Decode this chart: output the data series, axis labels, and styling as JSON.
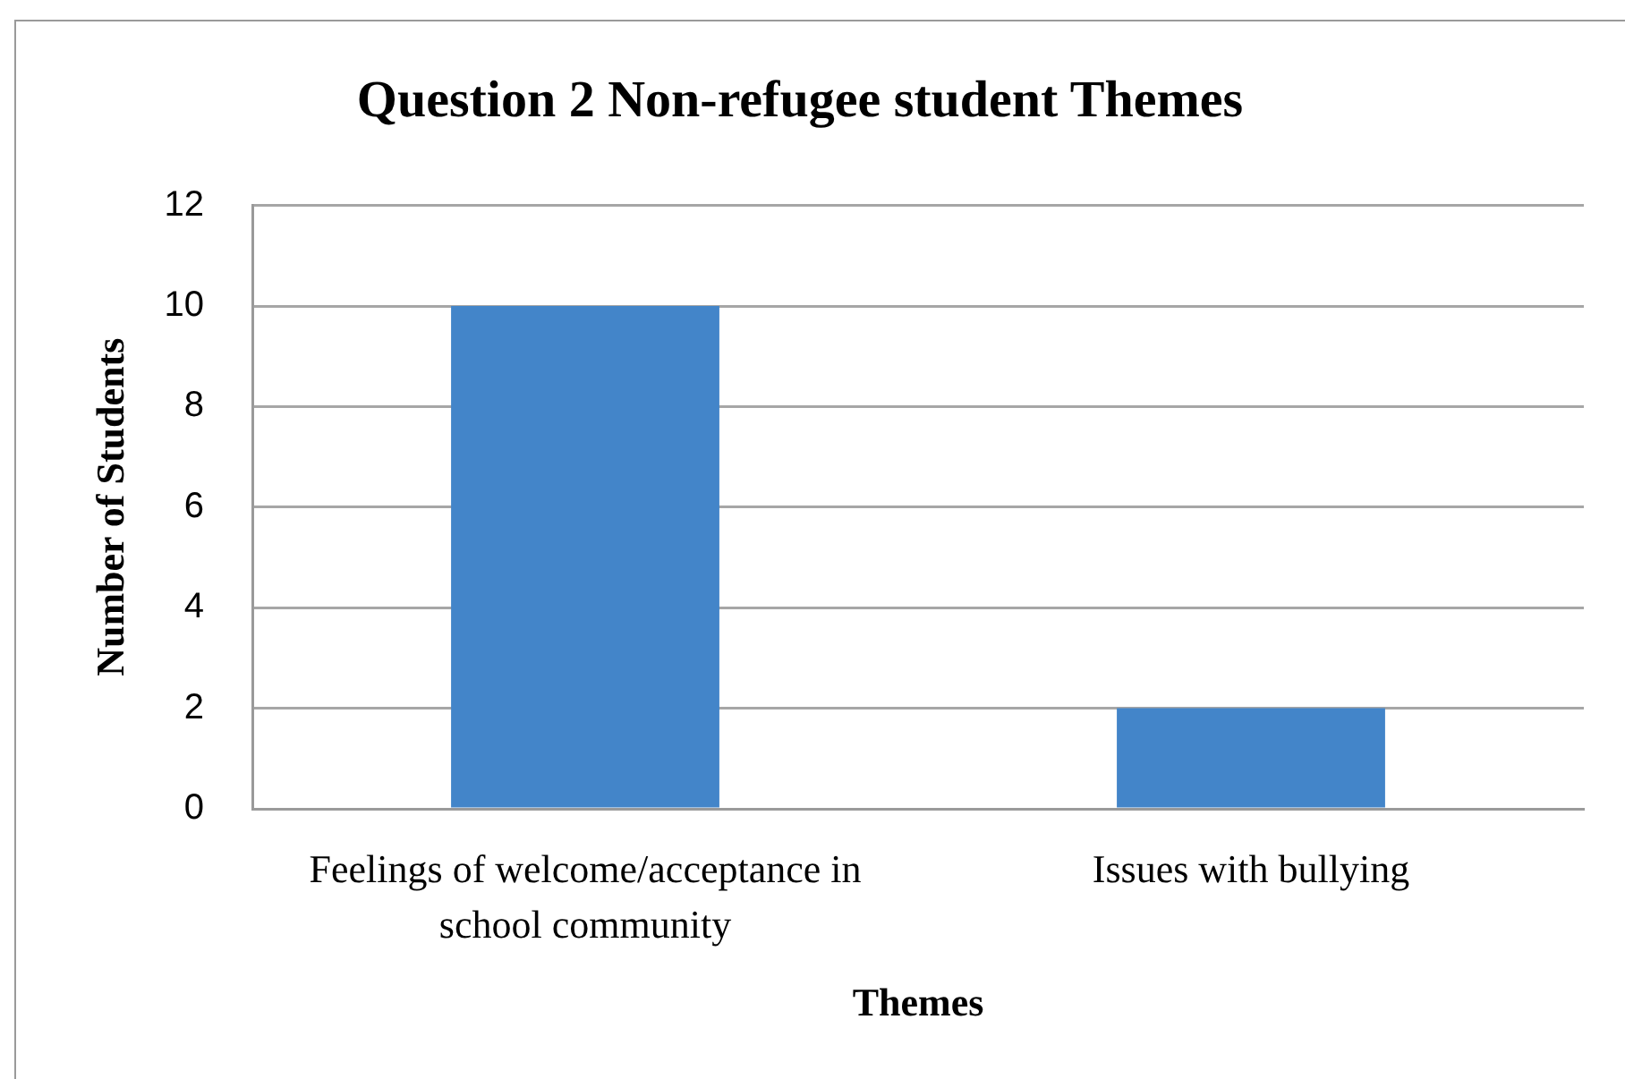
{
  "chart_data": {
    "type": "bar",
    "title": "Question 2 Non-refugee student Themes",
    "xlabel": "Themes",
    "ylabel": "Number of Students",
    "categories": [
      "Feelings of welcome/acceptance in school community",
      "Issues with bullying"
    ],
    "values": [
      10,
      2
    ],
    "color": "#4385c9",
    "ylim": [
      0,
      12
    ],
    "yticks": [
      0,
      2,
      4,
      6,
      8,
      10,
      12
    ],
    "grid": "y"
  }
}
